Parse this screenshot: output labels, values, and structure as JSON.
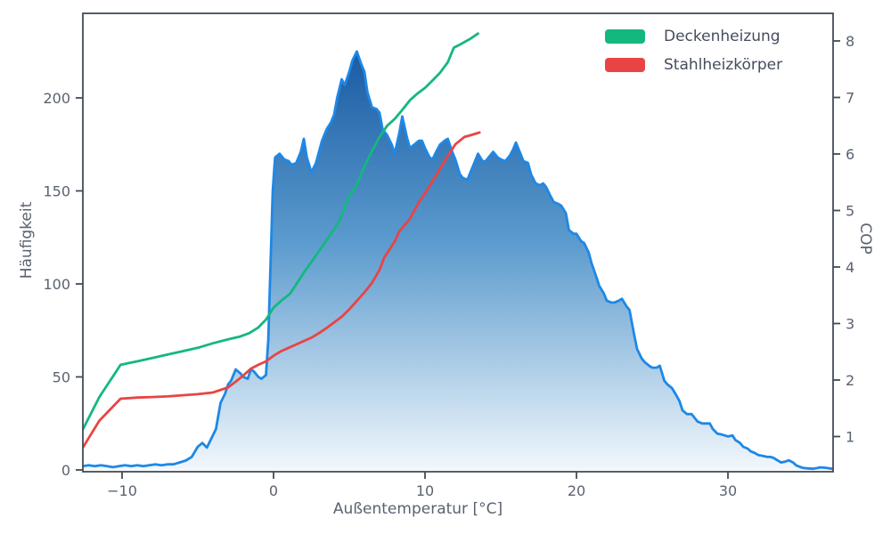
{
  "chart_data": {
    "type": "area",
    "title": "",
    "xlabel": "Außentemperatur [°C]",
    "ylabel_left": "Häufigkeit",
    "ylabel_right": "COP",
    "xlim": [
      -12.6,
      36.9
    ],
    "ylim_left": [
      0,
      245
    ],
    "ylim_right": [
      0.35,
      8.45
    ],
    "grid": false,
    "legend_position": "upper right",
    "x_ticks": [
      -10,
      0,
      10,
      20,
      30
    ],
    "x_tick_labels": [
      "−10",
      "0",
      "10",
      "20",
      "30"
    ],
    "y_ticks_left": [
      0,
      50,
      100,
      150,
      200
    ],
    "y_tick_labels_left": [
      "0",
      "50",
      "100",
      "150",
      "200"
    ],
    "y_ticks_right": [
      1,
      2,
      3,
      4,
      5,
      6,
      7,
      8
    ],
    "y_tick_labels_right": [
      "1",
      "2",
      "3",
      "4",
      "5",
      "6",
      "7",
      "8"
    ],
    "colors": {
      "frequency_line": "#1e88e5",
      "area_gradient_top": "#0d4e9b",
      "area_gradient_mid": "#5b9bce",
      "area_gradient_bottom": "#f3f8fc",
      "deckenheizung": "#14b87e",
      "stahlheizkoerper": "#e94444",
      "spine": "#434b59",
      "text": "#5a6270"
    },
    "legend": [
      {
        "label": "Deckenheizung",
        "color": "#14b87e"
      },
      {
        "label": "Stahlheizkörper",
        "color": "#e94444"
      }
    ],
    "series": [
      {
        "name": "Häufigkeit",
        "axis": "left",
        "style": "area",
        "color": "#1e88e5",
        "points": [
          [
            -12.6,
            2
          ],
          [
            -12.2,
            2.5
          ],
          [
            -11.8,
            2
          ],
          [
            -11.4,
            2.5
          ],
          [
            -11,
            2
          ],
          [
            -10.6,
            1.5
          ],
          [
            -10.2,
            2
          ],
          [
            -9.8,
            2.5
          ],
          [
            -9.4,
            2
          ],
          [
            -9,
            2.5
          ],
          [
            -8.6,
            2
          ],
          [
            -8.2,
            2.5
          ],
          [
            -7.8,
            3
          ],
          [
            -7.4,
            2.5
          ],
          [
            -7,
            3
          ],
          [
            -6.6,
            3
          ],
          [
            -6.2,
            4
          ],
          [
            -5.8,
            5
          ],
          [
            -5.4,
            7
          ],
          [
            -5,
            12.5
          ],
          [
            -4.7,
            14.5
          ],
          [
            -4.4,
            12
          ],
          [
            -4.1,
            17
          ],
          [
            -3.8,
            22
          ],
          [
            -3.5,
            36
          ],
          [
            -3.2,
            41
          ],
          [
            -3,
            46
          ],
          [
            -2.8,
            48
          ],
          [
            -2.5,
            54
          ],
          [
            -2.2,
            52
          ],
          [
            -2,
            50
          ],
          [
            -1.7,
            49
          ],
          [
            -1.5,
            54
          ],
          [
            -1.3,
            53
          ],
          [
            -1,
            50
          ],
          [
            -0.8,
            49
          ],
          [
            -0.5,
            51
          ],
          [
            -0.35,
            70
          ],
          [
            -0.2,
            110
          ],
          [
            -0.05,
            150
          ],
          [
            0.1,
            168
          ],
          [
            0.4,
            170
          ],
          [
            0.7,
            167
          ],
          [
            1,
            166
          ],
          [
            1.2,
            164
          ],
          [
            1.5,
            165
          ],
          [
            1.8,
            171
          ],
          [
            2,
            178
          ],
          [
            2.2,
            168
          ],
          [
            2.5,
            160
          ],
          [
            2.8,
            165
          ],
          [
            3,
            171
          ],
          [
            3.2,
            177
          ],
          [
            3.5,
            183
          ],
          [
            3.8,
            187
          ],
          [
            4,
            191
          ],
          [
            4.2,
            200
          ],
          [
            4.5,
            210
          ],
          [
            4.7,
            207
          ],
          [
            5,
            214
          ],
          [
            5.2,
            220
          ],
          [
            5.5,
            225
          ],
          [
            5.8,
            218
          ],
          [
            6,
            214
          ],
          [
            6.2,
            203
          ],
          [
            6.5,
            195
          ],
          [
            6.8,
            194
          ],
          [
            7,
            192
          ],
          [
            7.2,
            183
          ],
          [
            7.5,
            180
          ],
          [
            7.8,
            175
          ],
          [
            8,
            170
          ],
          [
            8.3,
            181
          ],
          [
            8.5,
            190
          ],
          [
            8.8,
            179
          ],
          [
            9,
            173
          ],
          [
            9.3,
            175
          ],
          [
            9.6,
            177
          ],
          [
            9.8,
            177
          ],
          [
            10,
            173
          ],
          [
            10.3,
            168
          ],
          [
            10.5,
            167
          ],
          [
            10.8,
            172
          ],
          [
            11,
            175
          ],
          [
            11.3,
            177
          ],
          [
            11.5,
            178
          ],
          [
            11.8,
            171
          ],
          [
            12,
            167
          ],
          [
            12.3,
            159
          ],
          [
            12.5,
            157
          ],
          [
            12.8,
            156
          ],
          [
            13,
            160
          ],
          [
            13.3,
            166
          ],
          [
            13.5,
            170
          ],
          [
            13.8,
            166
          ],
          [
            14,
            166
          ],
          [
            14.3,
            169
          ],
          [
            14.5,
            171
          ],
          [
            14.8,
            168
          ],
          [
            15,
            167
          ],
          [
            15.3,
            166
          ],
          [
            15.6,
            169
          ],
          [
            15.8,
            172
          ],
          [
            16,
            176
          ],
          [
            16.3,
            170
          ],
          [
            16.5,
            166
          ],
          [
            16.8,
            165
          ],
          [
            17,
            159
          ],
          [
            17.3,
            154
          ],
          [
            17.6,
            153
          ],
          [
            17.8,
            154
          ],
          [
            18,
            152
          ],
          [
            18.3,
            147
          ],
          [
            18.5,
            144
          ],
          [
            18.8,
            143
          ],
          [
            19,
            142
          ],
          [
            19.3,
            138
          ],
          [
            19.5,
            129
          ],
          [
            19.8,
            127
          ],
          [
            20,
            127
          ],
          [
            20.3,
            123
          ],
          [
            20.5,
            122
          ],
          [
            20.8,
            117
          ],
          [
            21,
            111
          ],
          [
            21.3,
            104
          ],
          [
            21.5,
            99
          ],
          [
            21.8,
            95
          ],
          [
            22,
            91
          ],
          [
            22.3,
            90
          ],
          [
            22.5,
            90
          ],
          [
            22.8,
            91
          ],
          [
            23,
            92
          ],
          [
            23.3,
            88
          ],
          [
            23.5,
            86
          ],
          [
            23.8,
            73
          ],
          [
            24,
            65
          ],
          [
            24.3,
            60
          ],
          [
            24.5,
            58
          ],
          [
            24.8,
            56
          ],
          [
            25,
            55
          ],
          [
            25.3,
            55
          ],
          [
            25.5,
            56
          ],
          [
            25.8,
            48
          ],
          [
            26,
            46
          ],
          [
            26.3,
            44
          ],
          [
            26.6,
            40
          ],
          [
            26.8,
            37
          ],
          [
            27,
            32
          ],
          [
            27.3,
            30
          ],
          [
            27.6,
            30
          ],
          [
            27.8,
            28
          ],
          [
            28,
            26
          ],
          [
            28.3,
            25
          ],
          [
            28.6,
            25
          ],
          [
            28.8,
            25
          ],
          [
            29,
            22
          ],
          [
            29.3,
            19.5
          ],
          [
            29.6,
            19
          ],
          [
            29.8,
            18.5
          ],
          [
            30,
            18
          ],
          [
            30.3,
            18.5
          ],
          [
            30.5,
            16
          ],
          [
            30.8,
            14.5
          ],
          [
            31,
            12.5
          ],
          [
            31.3,
            11.5
          ],
          [
            31.5,
            10
          ],
          [
            31.8,
            9
          ],
          [
            32,
            8
          ],
          [
            32.3,
            7.5
          ],
          [
            32.6,
            7
          ],
          [
            32.8,
            7
          ],
          [
            33,
            6.5
          ],
          [
            33.3,
            5
          ],
          [
            33.5,
            4
          ],
          [
            33.8,
            4.5
          ],
          [
            34,
            5.2
          ],
          [
            34.3,
            4
          ],
          [
            34.5,
            2.5
          ],
          [
            34.8,
            1.5
          ],
          [
            35,
            1
          ],
          [
            35.3,
            0.8
          ],
          [
            35.6,
            0.6
          ],
          [
            35.9,
            1
          ],
          [
            36.1,
            1.4
          ],
          [
            36.4,
            1.2
          ],
          [
            36.7,
            0.8
          ],
          [
            36.9,
            0.6
          ]
        ]
      },
      {
        "name": "Deckenheizung",
        "axis": "right",
        "style": "line",
        "color": "#14b87e",
        "points": [
          [
            -12.6,
            1.12
          ],
          [
            -11.5,
            1.7
          ],
          [
            -10.1,
            2.27
          ],
          [
            -9,
            2.33
          ],
          [
            -8,
            2.39
          ],
          [
            -7,
            2.45
          ],
          [
            -6,
            2.51
          ],
          [
            -5,
            2.57
          ],
          [
            -4,
            2.65
          ],
          [
            -3,
            2.72
          ],
          [
            -2.2,
            2.77
          ],
          [
            -1.6,
            2.83
          ],
          [
            -1,
            2.93
          ],
          [
            -0.5,
            3.07
          ],
          [
            0,
            3.28
          ],
          [
            0.5,
            3.4
          ],
          [
            1.1,
            3.53
          ],
          [
            2,
            3.9
          ],
          [
            3,
            4.28
          ],
          [
            4,
            4.67
          ],
          [
            4.3,
            4.79
          ],
          [
            5,
            5.25
          ],
          [
            5.5,
            5.45
          ],
          [
            6,
            5.78
          ],
          [
            6.5,
            6.05
          ],
          [
            7,
            6.3
          ],
          [
            7.5,
            6.5
          ],
          [
            8,
            6.62
          ],
          [
            8.5,
            6.78
          ],
          [
            9,
            6.95
          ],
          [
            9.5,
            7.07
          ],
          [
            10,
            7.17
          ],
          [
            10.5,
            7.3
          ],
          [
            11,
            7.44
          ],
          [
            11.5,
            7.62
          ],
          [
            11.9,
            7.88
          ],
          [
            12.4,
            7.95
          ],
          [
            13,
            8.04
          ],
          [
            13.5,
            8.13
          ]
        ]
      },
      {
        "name": "Stahlheizkörper",
        "axis": "right",
        "style": "line",
        "color": "#e94444",
        "points": [
          [
            -12.6,
            0.8
          ],
          [
            -11.5,
            1.28
          ],
          [
            -10.1,
            1.67
          ],
          [
            -9,
            1.69
          ],
          [
            -8,
            1.7
          ],
          [
            -7,
            1.71
          ],
          [
            -6,
            1.73
          ],
          [
            -5,
            1.75
          ],
          [
            -4,
            1.78
          ],
          [
            -3,
            1.87
          ],
          [
            -2.5,
            1.97
          ],
          [
            -2,
            2.08
          ],
          [
            -1.5,
            2.2
          ],
          [
            -1,
            2.27
          ],
          [
            -0.5,
            2.33
          ],
          [
            0,
            2.43
          ],
          [
            0.5,
            2.51
          ],
          [
            1,
            2.57
          ],
          [
            1.5,
            2.63
          ],
          [
            2,
            2.69
          ],
          [
            2.5,
            2.75
          ],
          [
            3,
            2.83
          ],
          [
            3.5,
            2.92
          ],
          [
            4,
            3.02
          ],
          [
            4.5,
            3.12
          ],
          [
            5,
            3.25
          ],
          [
            5.5,
            3.4
          ],
          [
            6,
            3.55
          ],
          [
            6.5,
            3.72
          ],
          [
            7,
            3.95
          ],
          [
            7.3,
            4.16
          ],
          [
            8,
            4.45
          ],
          [
            8.3,
            4.63
          ],
          [
            9,
            4.85
          ],
          [
            9.6,
            5.15
          ],
          [
            10,
            5.3
          ],
          [
            10.8,
            5.65
          ],
          [
            11.4,
            5.92
          ],
          [
            12,
            6.17
          ],
          [
            12.6,
            6.3
          ],
          [
            13,
            6.33
          ],
          [
            13.6,
            6.38
          ]
        ]
      }
    ]
  }
}
